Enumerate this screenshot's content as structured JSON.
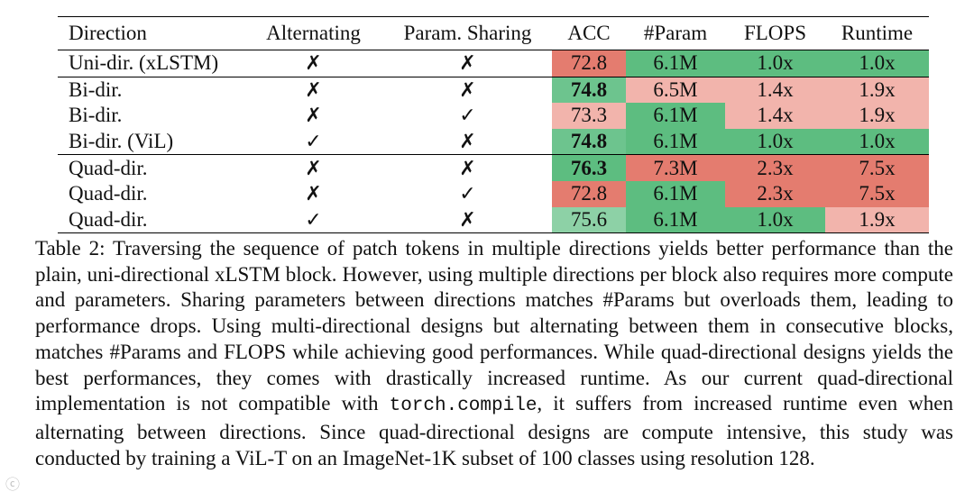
{
  "table": {
    "headers": [
      "Direction",
      "Alternating",
      "Param. Sharing",
      "ACC",
      "#Param",
      "FLOPS",
      "Runtime"
    ],
    "rows": [
      {
        "direction": "Uni-dir. (xLSTM)",
        "alternating": "✗",
        "sharing": "✗",
        "acc": "72.8",
        "param": "6.1M",
        "flops": "1.0x",
        "runtime": "1.0x",
        "acc_bold": false,
        "colors": {
          "acc": "#e47c6f",
          "param": "#5dbd80",
          "flops": "#5dbd80",
          "runtime": "#5dbd80"
        }
      },
      {
        "direction": "Bi-dir.",
        "alternating": "✗",
        "sharing": "✗",
        "acc": "74.8",
        "param": "6.5M",
        "flops": "1.4x",
        "runtime": "1.9x",
        "acc_bold": true,
        "colors": {
          "acc": "#6dc48e",
          "param": "#f2b4ac",
          "flops": "#f2b4ac",
          "runtime": "#f2b4ac"
        }
      },
      {
        "direction": "Bi-dir.",
        "alternating": "✗",
        "sharing": "✓",
        "acc": "73.3",
        "param": "6.1M",
        "flops": "1.4x",
        "runtime": "1.9x",
        "acc_bold": false,
        "colors": {
          "acc": "#f2b4ac",
          "param": "#5dbd80",
          "flops": "#f2b4ac",
          "runtime": "#f2b4ac"
        }
      },
      {
        "direction": "Bi-dir. (ViL)",
        "alternating": "✓",
        "sharing": "✗",
        "acc": "74.8",
        "param": "6.1M",
        "flops": "1.0x",
        "runtime": "1.0x",
        "acc_bold": true,
        "colors": {
          "acc": "#6dc48e",
          "param": "#5dbd80",
          "flops": "#5dbd80",
          "runtime": "#5dbd80"
        }
      },
      {
        "direction": "Quad-dir.",
        "alternating": "✗",
        "sharing": "✗",
        "acc": "76.3",
        "param": "7.3M",
        "flops": "2.3x",
        "runtime": "7.5x",
        "acc_bold": true,
        "colors": {
          "acc": "#5dbd80",
          "param": "#e47c6f",
          "flops": "#e47c6f",
          "runtime": "#e47c6f"
        }
      },
      {
        "direction": "Quad-dir.",
        "alternating": "✗",
        "sharing": "✓",
        "acc": "72.8",
        "param": "6.1M",
        "flops": "2.3x",
        "runtime": "7.5x",
        "acc_bold": false,
        "colors": {
          "acc": "#e47c6f",
          "param": "#5dbd80",
          "flops": "#e47c6f",
          "runtime": "#e47c6f"
        }
      },
      {
        "direction": "Quad-dir.",
        "alternating": "✓",
        "sharing": "✗",
        "acc": "75.6",
        "param": "6.1M",
        "flops": "1.0x",
        "runtime": "1.9x",
        "acc_bold": false,
        "colors": {
          "acc": "#8dd1a6",
          "param": "#5dbd80",
          "flops": "#5dbd80",
          "runtime": "#f2b4ac"
        }
      }
    ]
  },
  "caption": {
    "label": "Table 2:",
    "text_before_code": "Traversing the sequence of patch tokens in multiple directions yields better performance than the plain, uni-directional xLSTM block. However, using multiple directions per block also requires more compute and parameters. Sharing parameters between directions matches #Params but overloads them, leading to performance drops. Using multi-directional designs but alternating between them in consecutive blocks, matches #Params and FLOPS while achieving good performances. While quad-directional designs yields the best performances, they comes with drastically increased runtime. As our current quad-directional implementation is not compatible with",
    "code": "torch.compile",
    "text_after_code": ", it suffers from increased runtime even when alternating between directions. Since quad-directional designs are compute intensive, this study was conducted by training a ViL-T on an ImageNet-1K subset of 100 classes using resolution 128."
  }
}
